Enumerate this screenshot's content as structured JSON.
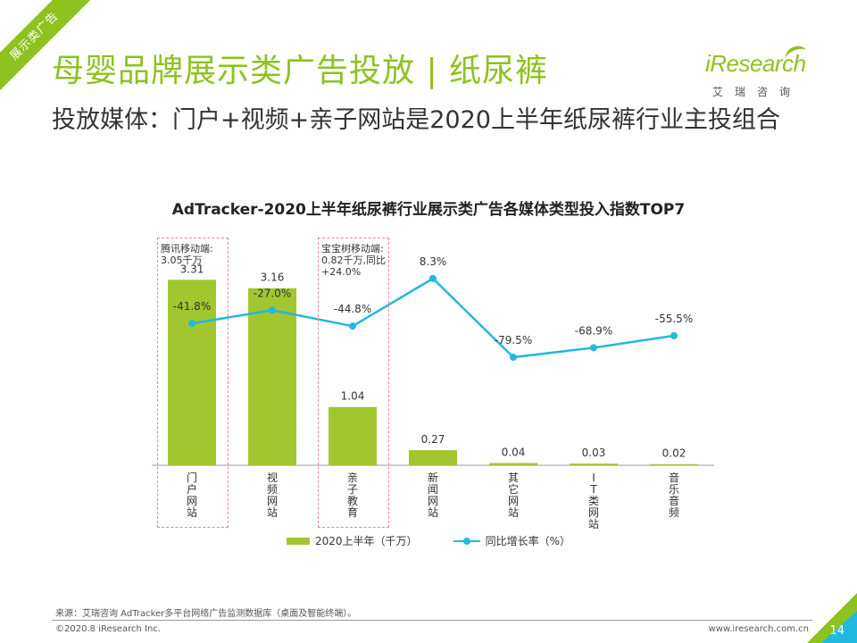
{
  "ribbon": "展示类广告",
  "header": {
    "title": "母婴品牌展示类广告投放 | 纸尿裤",
    "subtitle": "投放媒体：门户+视频+亲子网站是2020上半年纸尿裤行业主投组合"
  },
  "logo": {
    "brand": "iResearch",
    "cn": "艾瑞咨询"
  },
  "chart_data": {
    "type": "bar+line",
    "title": "AdTracker-2020上半年纸尿裤行业展示类广告各媒体类型投入指数TOP7",
    "categories": [
      "门户网站",
      "视频网站",
      "亲子教育",
      "新闻网站",
      "其它网站",
      "IT类网站",
      "音乐音频"
    ],
    "series": [
      {
        "name": "2020上半年（千万）",
        "type": "bar",
        "values": [
          3.31,
          3.16,
          1.04,
          0.27,
          0.04,
          0.03,
          0.02
        ],
        "labels": [
          "3.31",
          "3.16",
          "1.04",
          "0.27",
          "0.04",
          "0.03",
          "0.02"
        ],
        "color": "#a2c62f"
      },
      {
        "name": "同比增长率（%）",
        "type": "line",
        "values": [
          -41.8,
          -27.0,
          -44.8,
          8.3,
          -79.5,
          -68.9,
          -55.5
        ],
        "labels": [
          "-41.8%",
          "-27.0%",
          "-44.8%",
          "8.3%",
          "-79.5%",
          "-68.9%",
          "-55.5%"
        ],
        "color": "#23b8e0"
      }
    ],
    "bar_ylim": [
      0,
      4
    ],
    "line_ylim": [
      -200,
      50
    ],
    "annotations": [
      {
        "category_index": 0,
        "text": "腾讯移动端:\n3.05千万"
      },
      {
        "category_index": 2,
        "text": "宝宝树移动端:\n0.82千万,同比\n+24.0%"
      }
    ],
    "legend_position": "bottom",
    "grid": false
  },
  "source": "来源：艾瑞咨询 AdTracker多平台网络广告监测数据库（桌面及智能终端）。",
  "footer": {
    "copyright": "©2020.8 iResearch Inc.",
    "website": "www.iresearch.com.cn",
    "page": "14"
  }
}
